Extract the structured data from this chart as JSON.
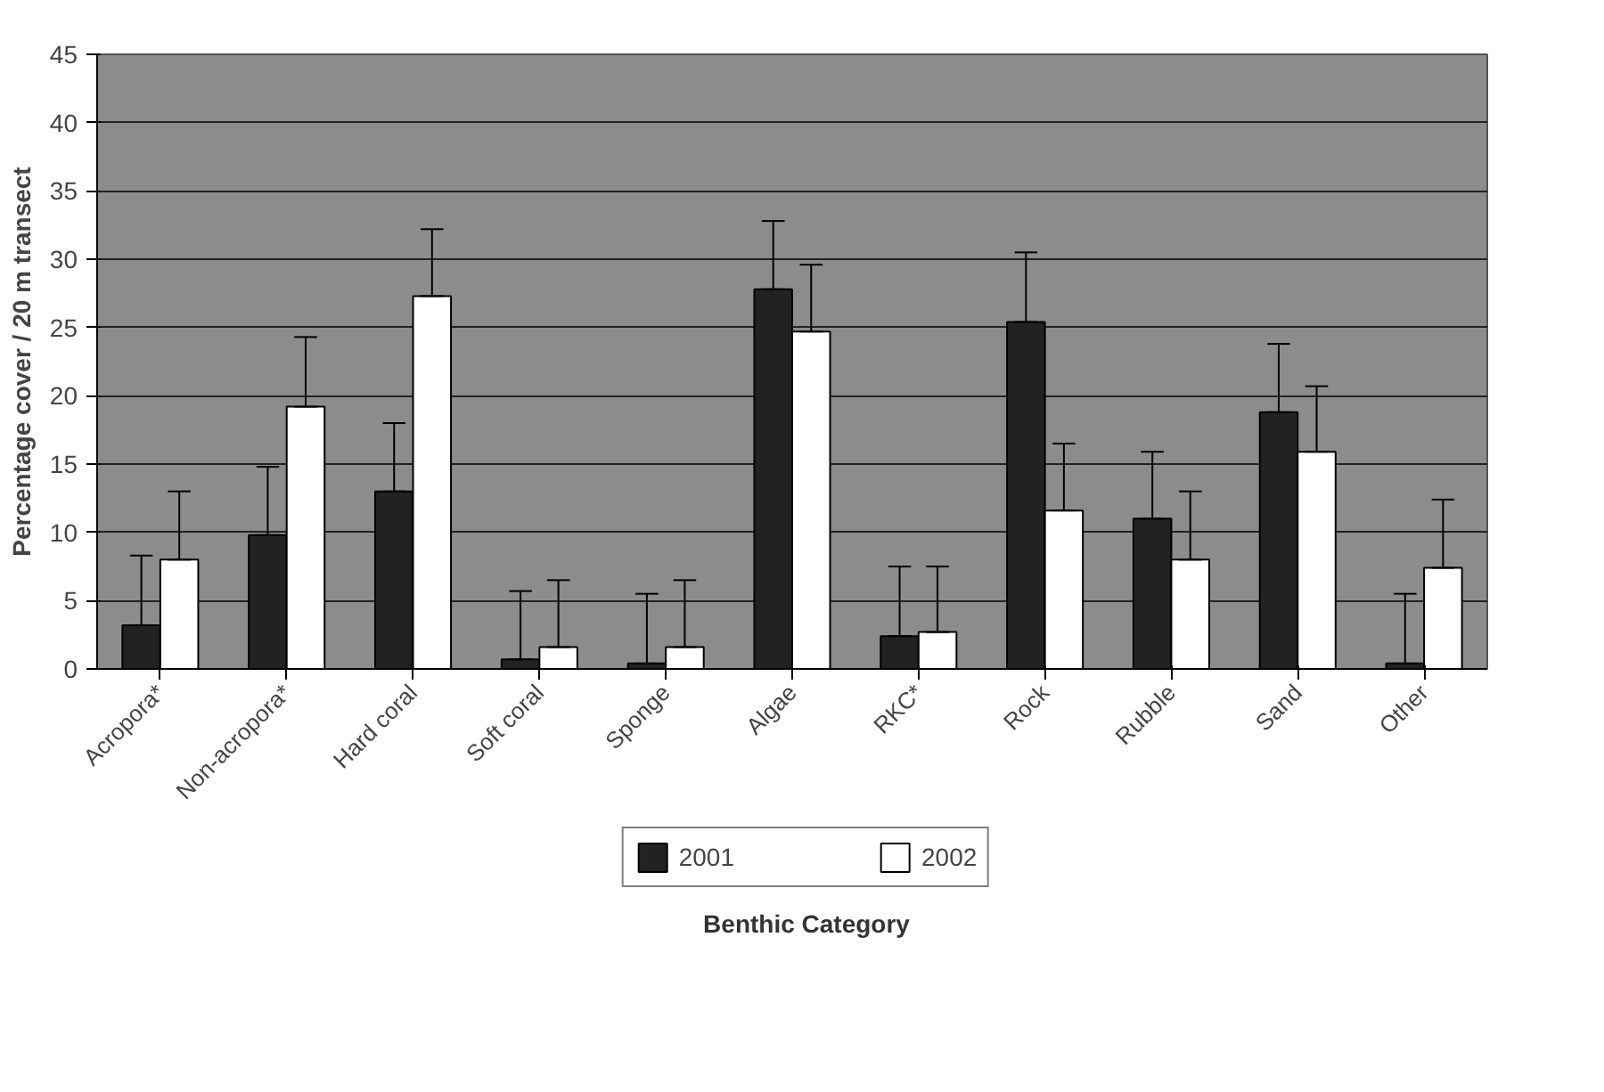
{
  "chart_data": {
    "type": "bar",
    "xlabel": "Benthic Category",
    "ylabel": "Percentage cover / 20 m transect",
    "categories": [
      "Acropora*",
      "Non-acropora*",
      "Hard coral",
      "Soft coral",
      "Sponge",
      "Algae",
      "RKC*",
      "Rock",
      "Rubble",
      "Sand",
      "Other"
    ],
    "series": [
      {
        "name": "2001",
        "color": "#222222",
        "values": [
          3.2,
          9.8,
          13,
          0.7,
          0.4,
          27.8,
          2.4,
          25.4,
          11,
          18.8,
          0.4
        ],
        "errors": [
          [
            3.2,
            8.3
          ],
          [
            9.8,
            14.8
          ],
          [
            13,
            18
          ],
          [
            0.7,
            5.7
          ],
          [
            0.4,
            5.5
          ],
          [
            27.8,
            32.8
          ],
          [
            2.4,
            7.5
          ],
          [
            25.4,
            30.5
          ],
          [
            11,
            15.9
          ],
          [
            18.8,
            23.8
          ],
          [
            0.4,
            5.5
          ]
        ]
      },
      {
        "name": "2002",
        "color": "#ffffff",
        "values": [
          8,
          19.2,
          27.3,
          1.6,
          1.6,
          24.7,
          2.7,
          11.6,
          8,
          15.9,
          7.4
        ],
        "errors": [
          [
            8,
            13
          ],
          [
            19.2,
            24.3
          ],
          [
            27.3,
            32.2
          ],
          [
            1.6,
            6.5
          ],
          [
            1.6,
            6.5
          ],
          [
            24.7,
            29.6
          ],
          [
            2.7,
            7.5
          ],
          [
            11.6,
            16.5
          ],
          [
            8,
            13
          ],
          [
            15.9,
            20.7
          ],
          [
            7.4,
            12.4
          ]
        ]
      }
    ],
    "ylim": [
      0,
      45
    ],
    "yticks": [
      0,
      5,
      10,
      15,
      20,
      25,
      30,
      35,
      40,
      45
    ],
    "grid": "y",
    "legend": "bottom"
  }
}
